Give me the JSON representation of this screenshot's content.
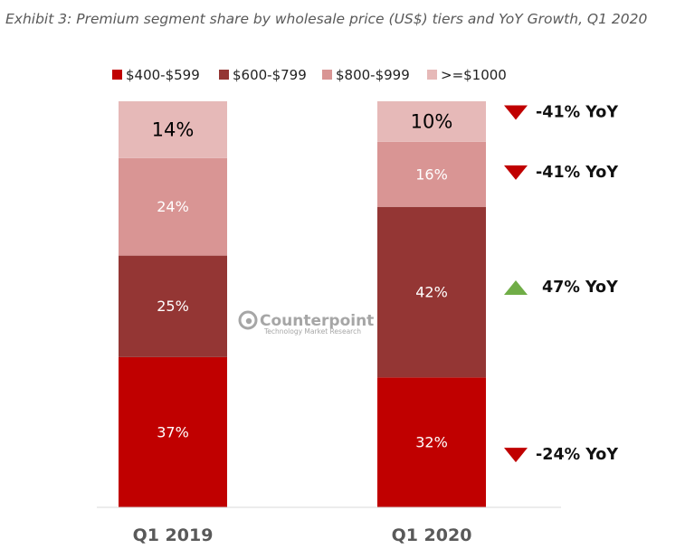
{
  "chart_data": {
    "type": "bar",
    "stacked": true,
    "title": "Exhibit 3: Premium segment share by wholesale price (US$) tiers and YoY Growth, Q1 2020",
    "categories": [
      "Q1 2019",
      "Q1 2020"
    ],
    "series": [
      {
        "name": "$400-$599",
        "color": "#c00000",
        "values": [
          37,
          32
        ],
        "labels": [
          "37%",
          "32%"
        ]
      },
      {
        "name": "$600-$799",
        "color": "#943634",
        "values": [
          25,
          42
        ],
        "labels": [
          "25%",
          "42%"
        ]
      },
      {
        "name": "$800-$999",
        "color": "#d99594",
        "values": [
          24,
          16
        ],
        "labels": [
          "24%",
          "16%"
        ]
      },
      {
        "name": ">=$1000",
        "color": "#e6b9b8",
        "values": [
          14,
          10
        ],
        "labels": [
          "14%",
          "10%"
        ]
      }
    ],
    "ylim": [
      0,
      100
    ],
    "legend_position": "top",
    "grid": false,
    "annotations": [
      {
        "series": ">=$1000",
        "text": "-41% YoY",
        "direction": "down",
        "color": "#c00000"
      },
      {
        "series": "$800-$999",
        "text": "-41% YoY",
        "direction": "down",
        "color": "#c00000"
      },
      {
        "series": "$600-$799",
        "text": "47% YoY",
        "direction": "up",
        "color": "#70ad47"
      },
      {
        "series": "$400-$599",
        "text": "-24% YoY",
        "direction": "down",
        "color": "#c00000"
      }
    ]
  },
  "watermark": {
    "brand": "Counterpoint",
    "tagline": "Technology Market Research",
    "icon": "counterpoint-logo-icon"
  }
}
